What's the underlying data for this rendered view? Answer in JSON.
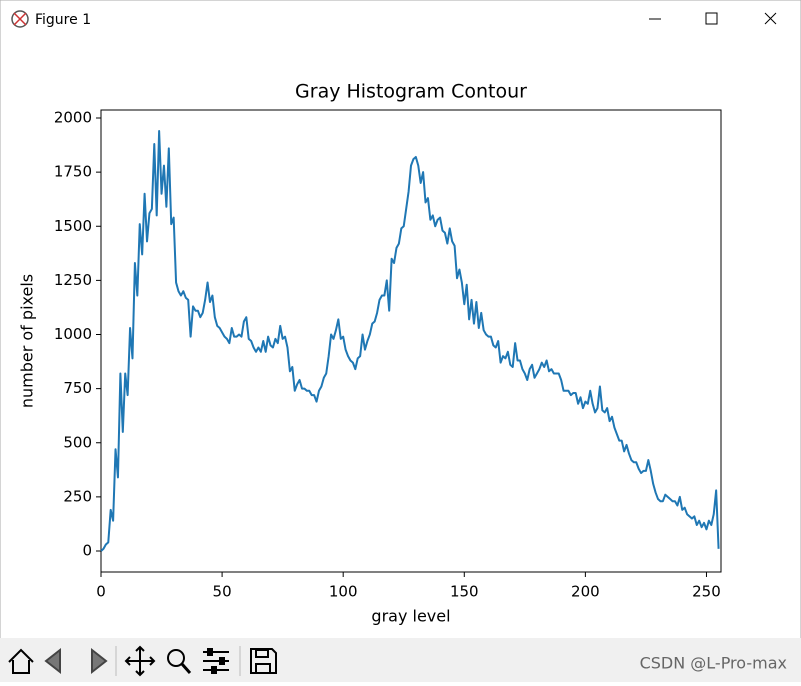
{
  "window": {
    "title": "Figure 1",
    "watermark": "CSDN @L-Pro-max"
  },
  "chart_data": {
    "type": "line",
    "title": "Gray Histogram Contour",
    "xlabel": "gray level",
    "ylabel": "number of pixels",
    "color": "#1f77b4",
    "x": [
      0,
      1,
      2,
      3,
      4,
      5,
      6,
      7,
      8,
      9,
      10,
      11,
      12,
      13,
      14,
      15,
      16,
      17,
      18,
      19,
      20,
      21,
      22,
      23,
      24,
      25,
      26,
      27,
      28,
      29,
      30,
      31,
      32,
      33,
      34,
      35,
      36,
      37,
      38,
      39,
      40,
      41,
      42,
      43,
      44,
      45,
      46,
      47,
      48,
      49,
      50,
      51,
      52,
      53,
      54,
      55,
      56,
      57,
      58,
      59,
      60,
      61,
      62,
      63,
      64,
      65,
      66,
      67,
      68,
      69,
      70,
      71,
      72,
      73,
      74,
      75,
      76,
      77,
      78,
      79,
      80,
      81,
      82,
      83,
      84,
      85,
      86,
      87,
      88,
      89,
      90,
      91,
      92,
      93,
      94,
      95,
      96,
      97,
      98,
      99,
      100,
      101,
      102,
      103,
      104,
      105,
      106,
      107,
      108,
      109,
      110,
      111,
      112,
      113,
      114,
      115,
      116,
      117,
      118,
      119,
      120,
      121,
      122,
      123,
      124,
      125,
      126,
      127,
      128,
      129,
      130,
      131,
      132,
      133,
      134,
      135,
      136,
      137,
      138,
      139,
      140,
      141,
      142,
      143,
      144,
      145,
      146,
      147,
      148,
      149,
      150,
      151,
      152,
      153,
      154,
      155,
      156,
      157,
      158,
      159,
      160,
      161,
      162,
      163,
      164,
      165,
      166,
      167,
      168,
      169,
      170,
      171,
      172,
      173,
      174,
      175,
      176,
      177,
      178,
      179,
      180,
      181,
      182,
      183,
      184,
      185,
      186,
      187,
      188,
      189,
      190,
      191,
      192,
      193,
      194,
      195,
      196,
      197,
      198,
      199,
      200,
      201,
      202,
      203,
      204,
      205,
      206,
      207,
      208,
      209,
      210,
      211,
      212,
      213,
      214,
      215,
      216,
      217,
      218,
      219,
      220,
      221,
      222,
      223,
      224,
      225,
      226,
      227,
      228,
      229,
      230,
      231,
      232,
      233,
      234,
      235,
      236,
      237,
      238,
      239,
      240,
      241,
      242,
      243,
      244,
      245,
      246,
      247,
      248,
      249,
      250,
      251,
      252,
      253,
      254,
      255
    ],
    "values": [
      0,
      10,
      30,
      40,
      190,
      140,
      470,
      340,
      820,
      550,
      820,
      720,
      1030,
      890,
      1330,
      1180,
      1510,
      1370,
      1650,
      1430,
      1560,
      1580,
      1880,
      1550,
      1940,
      1650,
      1780,
      1590,
      1860,
      1510,
      1540,
      1240,
      1200,
      1180,
      1200,
      1170,
      1160,
      990,
      1130,
      1110,
      1110,
      1080,
      1100,
      1160,
      1240,
      1150,
      1180,
      1080,
      1040,
      1030,
      1010,
      990,
      980,
      960,
      1030,
      990,
      990,
      1000,
      990,
      1060,
      1080,
      980,
      970,
      940,
      920,
      940,
      920,
      970,
      920,
      990,
      950,
      940,
      980,
      960,
      1040,
      980,
      990,
      940,
      830,
      850,
      740,
      770,
      790,
      750,
      750,
      740,
      740,
      720,
      720,
      690,
      740,
      760,
      800,
      820,
      900,
      1000,
      980,
      1020,
      1070,
      980,
      990,
      930,
      900,
      880,
      870,
      840,
      890,
      900,
      1000,
      930,
      970,
      1000,
      1050,
      1060,
      1100,
      1160,
      1180,
      1180,
      1250,
      1110,
      1350,
      1330,
      1400,
      1420,
      1490,
      1500,
      1580,
      1660,
      1780,
      1810,
      1820,
      1780,
      1700,
      1750,
      1610,
      1630,
      1530,
      1550,
      1500,
      1530,
      1540,
      1480,
      1470,
      1420,
      1490,
      1430,
      1410,
      1260,
      1300,
      1240,
      1140,
      1230,
      1070,
      1160,
      1050,
      1150,
      1030,
      1100,
      1020,
      1000,
      990,
      990,
      950,
      940,
      970,
      870,
      900,
      890,
      920,
      860,
      850,
      960,
      880,
      880,
      840,
      820,
      790,
      840,
      860,
      800,
      820,
      840,
      870,
      850,
      880,
      830,
      840,
      820,
      820,
      820,
      790,
      740,
      740,
      740,
      720,
      730,
      730,
      680,
      710,
      660,
      690,
      680,
      740,
      680,
      640,
      660,
      760,
      650,
      640,
      660,
      600,
      620,
      570,
      540,
      510,
      510,
      460,
      490,
      450,
      420,
      410,
      410,
      380,
      360,
      370,
      370,
      420,
      370,
      310,
      270,
      240,
      230,
      230,
      260,
      250,
      240,
      230,
      230,
      210,
      250,
      190,
      200,
      170,
      160,
      150,
      160,
      120,
      140,
      110,
      130,
      100,
      140,
      120,
      170,
      280,
      10
    ],
    "xlim": [
      0,
      256
    ],
    "ylim": [
      -97,
      2037
    ],
    "xticks": [
      0,
      50,
      100,
      150,
      200,
      250
    ],
    "yticks": [
      0,
      250,
      500,
      750,
      1000,
      1250,
      1500,
      1750,
      2000
    ]
  }
}
